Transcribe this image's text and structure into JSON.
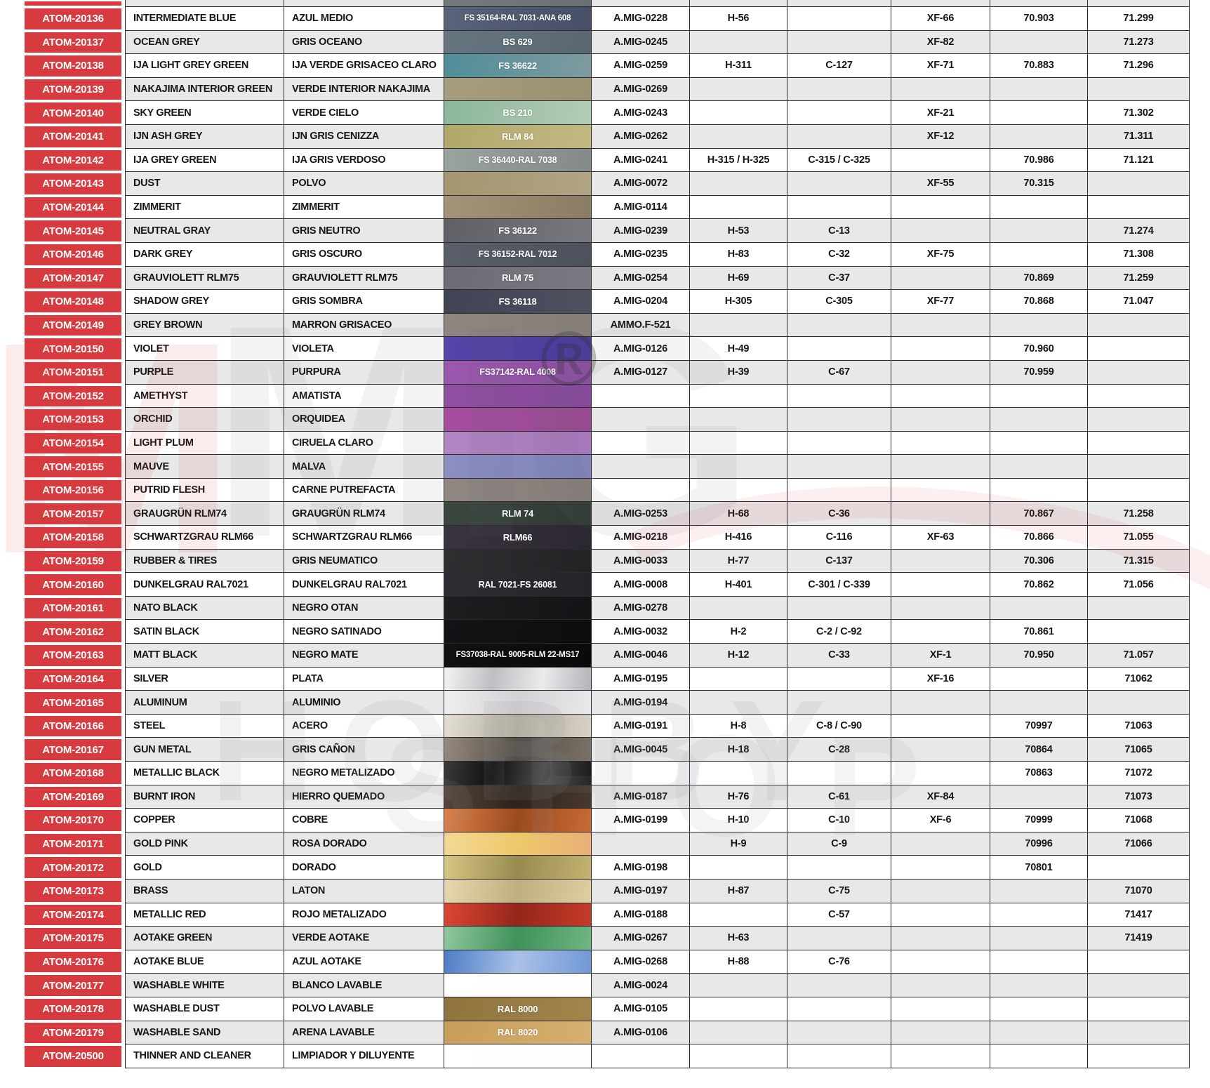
{
  "page": {
    "background": "#ffffff"
  },
  "watermark": {
    "red_letter": "M",
    "grey_letters": "MIG",
    "registered_mark": "®",
    "line1": "HOBBY",
    "line2": "SHOP",
    "grey_color": "#9a9aa0",
    "red_color": "#d6393e"
  },
  "table": {
    "accent_red": "#d73a3f",
    "stripe_color": "#e8e8e8",
    "border_color": "#2b2b2e",
    "partial_top_row": {
      "swatch_colors": [
        "#75797e",
        "#6c7075"
      ]
    },
    "rows": [
      {
        "code": "ATOM-20136",
        "en": "INTERMEDIATE BLUE",
        "es": "AZUL MEDIO",
        "swatch_label": "FS 35164-RAL 7031-ANA 608",
        "swatch_colors": [
          "#5a6379",
          "#474f68"
        ],
        "amig": "A.MIG-0228",
        "h": "H-56",
        "c": "",
        "xf": "XF-66",
        "v70": "70.903",
        "v71": "71.299"
      },
      {
        "code": "ATOM-20137",
        "en": "OCEAN GREY",
        "es": "GRIS OCEANO",
        "swatch_label": "BS 629",
        "swatch_colors": [
          "#667680",
          "#596770"
        ],
        "amig": "A.MIG-0245",
        "h": "",
        "c": "",
        "xf": "XF-82",
        "v70": "",
        "v71": "71.273"
      },
      {
        "code": "ATOM-20138",
        "en": "IJA LIGHT GREY GREEN",
        "es": "IJA VERDE GRISACEO CLARO",
        "swatch_label": "FS 36622",
        "swatch_colors": [
          "#4f8e99",
          "#7f9aa0"
        ],
        "amig": "A.MIG-0259",
        "h": "H-311",
        "c": "C-127",
        "xf": "XF-71",
        "v70": "70.883",
        "v71": "71.296"
      },
      {
        "code": "ATOM-20139",
        "en": "NAKAJIMA INTERIOR GREEN",
        "es": "VERDE INTERIOR NAKAJIMA",
        "swatch_label": "",
        "swatch_colors": [
          "#a79d80",
          "#99916f"
        ],
        "amig": "A.MIG-0269",
        "h": "",
        "c": "",
        "xf": "",
        "v70": "",
        "v71": ""
      },
      {
        "code": "ATOM-20140",
        "en": "SKY GREEN",
        "es": "VERDE CIELO",
        "swatch_label": "BS 210",
        "swatch_colors": [
          "#8ab79c",
          "#b4ccb6"
        ],
        "amig": "A.MIG-0243",
        "h": "",
        "c": "",
        "xf": "XF-21",
        "v70": "",
        "v71": "71.302"
      },
      {
        "code": "ATOM-20141",
        "en": "IJN ASH GREY",
        "es": "IJN GRIS CENIZZA",
        "swatch_label": "RLM 84",
        "swatch_colors": [
          "#b2a76a",
          "#c2b883"
        ],
        "amig": "A.MIG-0262",
        "h": "",
        "c": "",
        "xf": "XF-12",
        "v70": "",
        "v71": "71.311"
      },
      {
        "code": "ATOM-20142",
        "en": "IJA GREY GREEN",
        "es": "IJA GRIS VERDOSO",
        "swatch_label": "FS 36440-RAL 7038",
        "swatch_colors": [
          "#9aa3a0",
          "#838a87"
        ],
        "amig": "A.MIG-0241",
        "h": "H-315 / H-325",
        "c": "C-315 / C-325",
        "xf": "",
        "v70": "70.986",
        "v71": "71.121"
      },
      {
        "code": "ATOM-20143",
        "en": "DUST",
        "es": "POLVO",
        "swatch_label": "",
        "swatch_colors": [
          "#a3966f",
          "#b0a485"
        ],
        "amig": "A.MIG-0072",
        "h": "",
        "c": "",
        "xf": "XF-55",
        "v70": "70.315",
        "v71": ""
      },
      {
        "code": "ATOM-20144",
        "en": "ZIMMERIT",
        "es": "ZIMMERIT",
        "swatch_label": "",
        "swatch_colors": [
          "#a3947a",
          "#8a7c62"
        ],
        "amig": "A.MIG-0114",
        "h": "",
        "c": "",
        "xf": "",
        "v70": "",
        "v71": ""
      },
      {
        "code": "ATOM-20145",
        "en": "NEUTRAL GRAY",
        "es": "GRIS NEUTRO",
        "swatch_label": "FS 36122",
        "swatch_colors": [
          "#5e6066",
          "#77797e"
        ],
        "amig": "A.MIG-0239",
        "h": "H-53",
        "c": "C-13",
        "xf": "",
        "v70": "",
        "v71": "71.274"
      },
      {
        "code": "ATOM-20146",
        "en": "DARK GREY",
        "es": "GRIS OSCURO",
        "swatch_label": "FS 36152-RAL 7012",
        "swatch_colors": [
          "#5a5f6a",
          "#4d515b"
        ],
        "amig": "A.MIG-0235",
        "h": "H-83",
        "c": "C-32",
        "xf": "XF-75",
        "v70": "",
        "v71": "71.308"
      },
      {
        "code": "ATOM-20147",
        "en": "GRAUVIOLETT RLM75",
        "es": "GRAUVIOLETT RLM75",
        "swatch_label": "RLM 75",
        "swatch_colors": [
          "#6e6a73",
          "#7d7982"
        ],
        "amig": "A.MIG-0254",
        "h": "H-69",
        "c": "C-37",
        "xf": "",
        "v70": "70.869",
        "v71": "71.259"
      },
      {
        "code": "ATOM-20148",
        "en": "SHADOW GREY",
        "es": "GRIS SOMBRA",
        "swatch_label": "FS 36118",
        "swatch_colors": [
          "#3f4354",
          "#4d5160"
        ],
        "amig": "A.MIG-0204",
        "h": "H-305",
        "c": "C-305",
        "xf": "XF-77",
        "v70": "70.868",
        "v71": "71.047"
      },
      {
        "code": "ATOM-20149",
        "en": "GREY BROWN",
        "es": "MARRON GRISACEO",
        "swatch_label": "",
        "swatch_colors": [
          "#8e8680",
          "#857d77"
        ],
        "amig": "AMMO.F-521",
        "h": "",
        "c": "",
        "xf": "",
        "v70": "",
        "v71": ""
      },
      {
        "code": "ATOM-20150",
        "en": "VIOLET",
        "es": "VIOLETA",
        "swatch_label": "",
        "swatch_colors": [
          "#5645aa",
          "#4a3a99"
        ],
        "amig": "A.MIG-0126",
        "h": "H-49",
        "c": "",
        "xf": "",
        "v70": "70.960",
        "v71": ""
      },
      {
        "code": "ATOM-20151",
        "en": "PURPLE",
        "es": "PURPURA",
        "swatch_label": "FS37142-RAL 4008",
        "swatch_colors": [
          "#9a58ae",
          "#8c4fa0"
        ],
        "amig": "A.MIG-0127",
        "h": "H-39",
        "c": "C-67",
        "xf": "",
        "v70": "70.959",
        "v71": ""
      },
      {
        "code": "ATOM-20152",
        "en": "AMETHYST",
        "es": "AMATISTA",
        "swatch_label": "",
        "swatch_colors": [
          "#9150a2",
          "#85489a"
        ],
        "amig": "",
        "h": "",
        "c": "",
        "xf": "",
        "v70": "",
        "v71": ""
      },
      {
        "code": "ATOM-20153",
        "en": "ORCHID",
        "es": "ORQUIDEA",
        "swatch_label": "",
        "swatch_colors": [
          "#a84da0",
          "#964a90"
        ],
        "amig": "",
        "h": "",
        "c": "",
        "xf": "",
        "v70": "",
        "v71": ""
      },
      {
        "code": "ATOM-20154",
        "en": "LIGHT PLUM",
        "es": "CIRUELA CLARO",
        "swatch_label": "",
        "swatch_colors": [
          "#b285c3",
          "#a577ba"
        ],
        "amig": "",
        "h": "",
        "c": "",
        "xf": "",
        "v70": "",
        "v71": ""
      },
      {
        "code": "ATOM-20155",
        "en": "MAUVE",
        "es": "MALVA",
        "swatch_label": "",
        "swatch_colors": [
          "#8d8fc4",
          "#7f82b8"
        ],
        "amig": "",
        "h": "",
        "c": "",
        "xf": "",
        "v70": "",
        "v71": ""
      },
      {
        "code": "ATOM-20156",
        "en": "PUTRID FLESH",
        "es": "CARNE PUTREFACTA",
        "swatch_label": "",
        "swatch_colors": [
          "#908783",
          "#867d79"
        ],
        "amig": "",
        "h": "",
        "c": "",
        "xf": "",
        "v70": "",
        "v71": ""
      },
      {
        "code": "ATOM-20157",
        "en": "GRAUGRÜN RLM74",
        "es": "GRAUGRÜN RLM74",
        "swatch_label": "RLM 74",
        "swatch_colors": [
          "#3c473f",
          "#303a33"
        ],
        "amig": "A.MIG-0253",
        "h": "H-68",
        "c": "C-36",
        "xf": "",
        "v70": "70.867",
        "v71": "71.258"
      },
      {
        "code": "ATOM-20158",
        "en": "SCHWARTZGRAU RLM66",
        "es": "SCHWARTZGRAU RLM66",
        "swatch_label": "RLM66",
        "swatch_colors": [
          "#393440",
          "#2b2730"
        ],
        "amig": "A.MIG-0218",
        "h": "H-416",
        "c": "C-116",
        "xf": "XF-63",
        "v70": "70.866",
        "v71": "71.055"
      },
      {
        "code": "ATOM-20159",
        "en": "RUBBER & TIRES",
        "es": "GRIS NEUMATICO",
        "swatch_label": "",
        "swatch_colors": [
          "#302e31",
          "#242225"
        ],
        "amig": "A.MIG-0033",
        "h": "H-77",
        "c": "C-137",
        "xf": "",
        "v70": "70.306",
        "v71": "71.315"
      },
      {
        "code": "ATOM-20160",
        "en": "DUNKELGRAU RAL7021",
        "es": "DUNKELGRAU RAL7021",
        "swatch_label": "RAL 7021-FS 26081",
        "swatch_colors": [
          "#2e2d33",
          "#252429"
        ],
        "amig": "A.MIG-0008",
        "h": "H-401",
        "c": "C-301 / C-339",
        "xf": "",
        "v70": "70.862",
        "v71": "71.056"
      },
      {
        "code": "ATOM-20161",
        "en": "NATO BLACK",
        "es": "NEGRO OTAN",
        "swatch_label": "",
        "swatch_colors": [
          "#201d20",
          "#151316"
        ],
        "amig": "A.MIG-0278",
        "h": "",
        "c": "",
        "xf": "",
        "v70": "",
        "v71": ""
      },
      {
        "code": "ATOM-20162",
        "en": "SATIN BLACK",
        "es": "NEGRO SATINADO",
        "swatch_label": "",
        "swatch_colors": [
          "#151316",
          "#0d0c0e"
        ],
        "amig": "A.MIG-0032",
        "h": "H-2",
        "c": "C-2 / C-92",
        "xf": "",
        "v70": "70.861",
        "v71": ""
      },
      {
        "code": "ATOM-20163",
        "en": "MATT BLACK",
        "es": "NEGRO MATE",
        "swatch_label": "FS37038-RAL 9005-RLM 22-MS17",
        "swatch_colors": [
          "#121011",
          "#0b0a0b"
        ],
        "amig": "A.MIG-0046",
        "h": "H-12",
        "c": "C-33",
        "xf": "XF-1",
        "v70": "70.950",
        "v71": "71.057"
      },
      {
        "code": "ATOM-20164",
        "en": "SILVER",
        "es": "PLATA",
        "swatch_label": "",
        "swatch_colors": [
          "#f4f4f5",
          "#bfbfc3",
          "#ebebed",
          "#b2b2b8"
        ],
        "amig": "A.MIG-0195",
        "h": "",
        "c": "",
        "xf": "XF-16",
        "v70": "",
        "v71": "71062"
      },
      {
        "code": "ATOM-20165",
        "en": "ALUMINUM",
        "es": "ALUMINIO",
        "swatch_label": "",
        "swatch_colors": [
          "#f0f0f1",
          "#d2d2d5",
          "#e9e9eb"
        ],
        "amig": "A.MIG-0194",
        "h": "",
        "c": "",
        "xf": "",
        "v70": "",
        "v71": ""
      },
      {
        "code": "ATOM-20166",
        "en": "STEEL",
        "es": "ACERO",
        "swatch_label": "",
        "swatch_colors": [
          "#e4dfd3",
          "#b3aea2",
          "#d7d2c5"
        ],
        "amig": "A.MIG-0191",
        "h": "H-8",
        "c": "C-8 / C-90",
        "xf": "",
        "v70": "70997",
        "v71": "71063"
      },
      {
        "code": "ATOM-20167",
        "en": "GUN METAL",
        "es": "GRIS CAÑON",
        "swatch_label": "",
        "swatch_colors": [
          "#95897c",
          "#554f49",
          "#7a7268"
        ],
        "amig": "A.MIG-0045",
        "h": "H-18",
        "c": "C-28",
        "xf": "",
        "v70": "70864",
        "v71": "71065"
      },
      {
        "code": "ATOM-20168",
        "en": "METALLIC BLACK",
        "es": "NEGRO METALIZADO",
        "swatch_label": "",
        "swatch_colors": [
          "#3a3a3c",
          "#101010",
          "#4c4c4e",
          "#1a1a1b"
        ],
        "amig": "",
        "h": "",
        "c": "",
        "xf": "",
        "v70": "70863",
        "v71": "71072"
      },
      {
        "code": "ATOM-20169",
        "en": "BURNT IRON",
        "es": "HIERRO QUEMADO",
        "swatch_label": "",
        "swatch_colors": [
          "#56463a",
          "#2d231c",
          "#49392e"
        ],
        "amig": "A.MIG-0187",
        "h": "H-76",
        "c": "C-61",
        "xf": "XF-84",
        "v70": "",
        "v71": "71073"
      },
      {
        "code": "ATOM-20170",
        "en": "COPPER",
        "es": "COBRE",
        "swatch_label": "",
        "swatch_colors": [
          "#df8147",
          "#9b4a20",
          "#c86a34"
        ],
        "amig": "A.MIG-0199",
        "h": "H-10",
        "c": "C-10",
        "xf": "XF-6",
        "v70": "70999",
        "v71": "71068"
      },
      {
        "code": "ATOM-20171",
        "en": "GOLD PINK",
        "es": "ROSA DORADO",
        "swatch_label": "",
        "swatch_colors": [
          "#f3d997",
          "#eec96a",
          "#e8ae79"
        ],
        "amig": "",
        "h": "H-9",
        "c": "C-9",
        "xf": "",
        "v70": "70996",
        "v71": "71066"
      },
      {
        "code": "ATOM-20172",
        "en": "GOLD",
        "es": "DORADO",
        "swatch_label": "",
        "swatch_colors": [
          "#d8c884",
          "#998b50",
          "#c3b372"
        ],
        "amig": "A.MIG-0198",
        "h": "",
        "c": "",
        "xf": "",
        "v70": "70801",
        "v71": ""
      },
      {
        "code": "ATOM-20173",
        "en": "BRASS",
        "es": "LATON",
        "swatch_label": "",
        "swatch_colors": [
          "#e7d8b0",
          "#c0af7f",
          "#decea2"
        ],
        "amig": "A.MIG-0197",
        "h": "H-87",
        "c": "C-75",
        "xf": "",
        "v70": "",
        "v71": "71070"
      },
      {
        "code": "ATOM-20174",
        "en": "METALLIC RED",
        "es": "ROJO METALIZADO",
        "swatch_label": "",
        "swatch_colors": [
          "#dc4733",
          "#94261b",
          "#c63b29"
        ],
        "amig": "A.MIG-0188",
        "h": "",
        "c": "C-57",
        "xf": "",
        "v70": "",
        "v71": "71417"
      },
      {
        "code": "ATOM-20175",
        "en": "AOTAKE GREEN",
        "es": "VERDE AOTAKE",
        "swatch_label": "",
        "swatch_colors": [
          "#90c89d",
          "#40915a",
          "#6eb783"
        ],
        "amig": "A.MIG-0267",
        "h": "H-63",
        "c": "",
        "xf": "",
        "v70": "",
        "v71": "71419"
      },
      {
        "code": "ATOM-20176",
        "en": "AOTAKE BLUE",
        "es": "AZUL AOTAKE",
        "swatch_label": "",
        "swatch_colors": [
          "#4d7cc5",
          "#aac1e7",
          "#7098d5"
        ],
        "amig": "A.MIG-0268",
        "h": "H-88",
        "c": "C-76",
        "xf": "",
        "v70": "",
        "v71": ""
      },
      {
        "code": "ATOM-20177",
        "en": "WASHABLE WHITE",
        "es": "BLANCO LAVABLE",
        "swatch_label": "",
        "swatch_colors": [
          "#ffffff",
          "#fdfdfd"
        ],
        "amig": "A.MIG-0024",
        "h": "",
        "c": "",
        "xf": "",
        "v70": "",
        "v71": ""
      },
      {
        "code": "ATOM-20178",
        "en": "WASHABLE DUST",
        "es": "POLVO LAVABLE",
        "swatch_label": "RAL 8000",
        "swatch_colors": [
          "#90743f",
          "#a1854a"
        ],
        "amig": "A.MIG-0105",
        "h": "",
        "c": "",
        "xf": "",
        "v70": "",
        "v71": ""
      },
      {
        "code": "ATOM-20179",
        "en": "WASHABLE SAND",
        "es": "ARENA LAVABLE",
        "swatch_label": "RAL 8020",
        "swatch_colors": [
          "#c99d5a",
          "#d5b06f"
        ],
        "amig": "A.MIG-0106",
        "h": "",
        "c": "",
        "xf": "",
        "v70": "",
        "v71": ""
      },
      {
        "code": "ATOM-20500",
        "en": "THINNER AND CLEANER",
        "es": "LIMPIADOR Y DILUYENTE",
        "swatch_label": "",
        "swatch_colors": [
          "#ffffff",
          "#fdfdfd"
        ],
        "amig": "",
        "h": "",
        "c": "",
        "xf": "",
        "v70": "",
        "v71": ""
      }
    ]
  }
}
